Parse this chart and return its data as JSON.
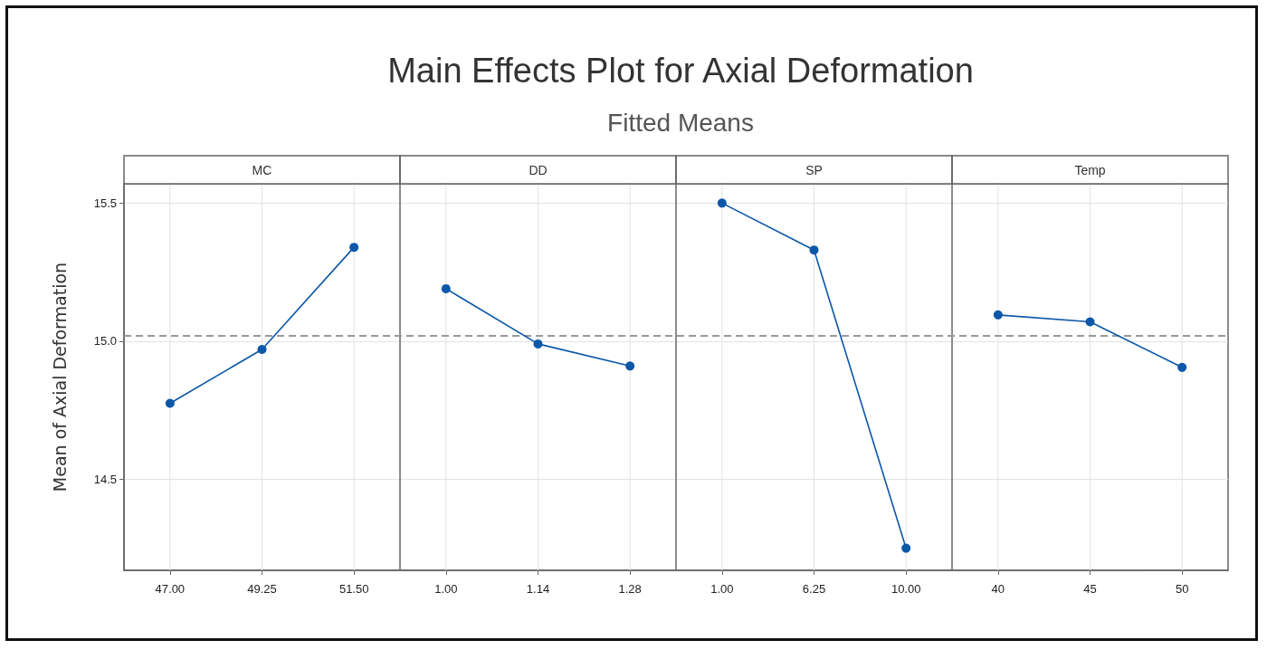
{
  "chart_data": {
    "type": "line",
    "title": "Main Effects Plot for Axial Deformation",
    "subtitle": "Fitted Means",
    "ylabel": "Mean of Axial Deformation",
    "annotations": [
      "MC",
      "DD",
      "SP",
      "Temp"
    ],
    "categories": [
      "47.00",
      "49.25",
      "51.50",
      "1.00",
      "1.14",
      "1.28",
      "1.00",
      "6.25",
      "10.00",
      "40",
      "45",
      "50"
    ],
    "series": [
      {
        "color": "#0b57a8",
        "values": [
          14.775,
          14.97,
          15.34,
          null,
          null,
          null,
          null,
          null,
          null,
          null,
          null,
          null
        ]
      },
      {
        "color": "#0b57a8",
        "values": [
          null,
          null,
          null,
          15.19,
          14.99,
          14.91,
          null,
          null,
          null,
          null,
          null,
          null
        ]
      },
      {
        "color": "#0b57a8",
        "values": [
          null,
          null,
          null,
          null,
          null,
          null,
          15.5,
          15.33,
          14.25,
          null,
          null,
          null
        ]
      },
      {
        "color": "#0b57a8",
        "values": [
          null,
          null,
          null,
          null,
          null,
          null,
          null,
          null,
          null,
          15.095,
          15.07,
          14.905
        ]
      }
    ],
    "ylim": [
      14.17,
      15.57
    ],
    "yticks": [
      {
        "value": 14.5,
        "label": "14.5"
      },
      {
        "value": 15,
        "label": "15.0"
      },
      {
        "value": 15.5,
        "label": "15.5"
      }
    ],
    "grid": true,
    "marker": "circle",
    "ref_lines": [
      {
        "axis": "y",
        "value": 15.02,
        "color": "#999999",
        "line_style": "dashed"
      }
    ]
  }
}
